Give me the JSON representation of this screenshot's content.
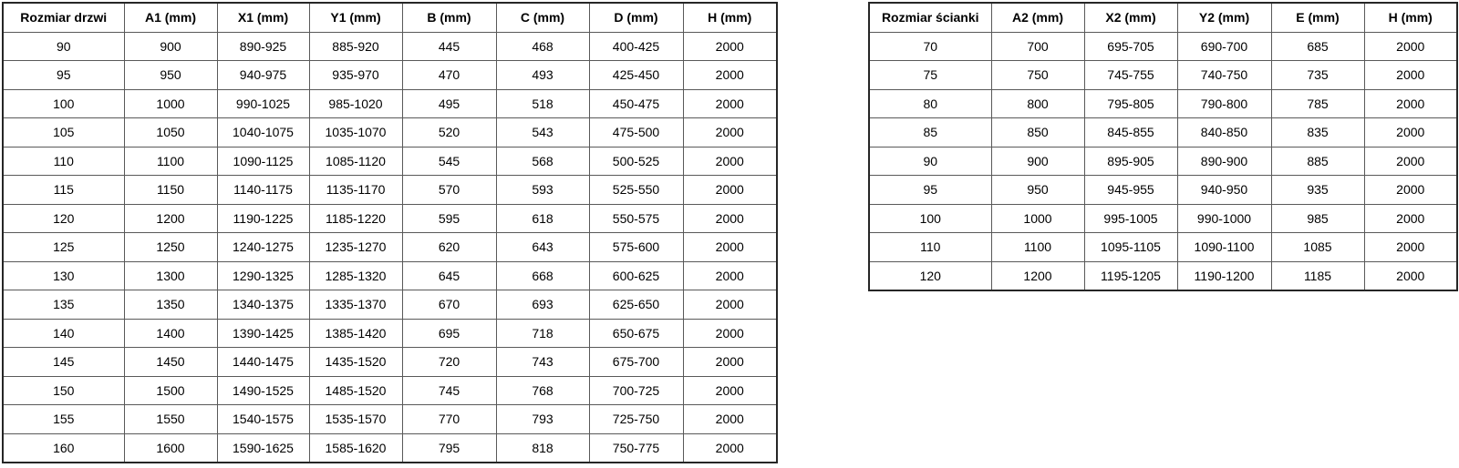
{
  "colors": {
    "background": "#ffffff",
    "border_outer": "#262626",
    "border_inner": "#595959",
    "text": "#000000"
  },
  "tables": [
    {
      "name": "door-size-table",
      "headers": [
        "Rozmiar drzwi",
        "A1 (mm)",
        "X1 (mm)",
        "Y1 (mm)",
        "B (mm)",
        "C (mm)",
        "D (mm)",
        "H (mm)"
      ],
      "rows": [
        [
          "90",
          "900",
          "890-925",
          "885-920",
          "445",
          "468",
          "400-425",
          "2000"
        ],
        [
          "95",
          "950",
          "940-975",
          "935-970",
          "470",
          "493",
          "425-450",
          "2000"
        ],
        [
          "100",
          "1000",
          "990-1025",
          "985-1020",
          "495",
          "518",
          "450-475",
          "2000"
        ],
        [
          "105",
          "1050",
          "1040-1075",
          "1035-1070",
          "520",
          "543",
          "475-500",
          "2000"
        ],
        [
          "110",
          "1100",
          "1090-1125",
          "1085-1120",
          "545",
          "568",
          "500-525",
          "2000"
        ],
        [
          "115",
          "1150",
          "1140-1175",
          "1135-1170",
          "570",
          "593",
          "525-550",
          "2000"
        ],
        [
          "120",
          "1200",
          "1190-1225",
          "1185-1220",
          "595",
          "618",
          "550-575",
          "2000"
        ],
        [
          "125",
          "1250",
          "1240-1275",
          "1235-1270",
          "620",
          "643",
          "575-600",
          "2000"
        ],
        [
          "130",
          "1300",
          "1290-1325",
          "1285-1320",
          "645",
          "668",
          "600-625",
          "2000"
        ],
        [
          "135",
          "1350",
          "1340-1375",
          "1335-1370",
          "670",
          "693",
          "625-650",
          "2000"
        ],
        [
          "140",
          "1400",
          "1390-1425",
          "1385-1420",
          "695",
          "718",
          "650-675",
          "2000"
        ],
        [
          "145",
          "1450",
          "1440-1475",
          "1435-1520",
          "720",
          "743",
          "675-700",
          "2000"
        ],
        [
          "150",
          "1500",
          "1490-1525",
          "1485-1520",
          "745",
          "768",
          "700-725",
          "2000"
        ],
        [
          "155",
          "1550",
          "1540-1575",
          "1535-1570",
          "770",
          "793",
          "725-750",
          "2000"
        ],
        [
          "160",
          "1600",
          "1590-1625",
          "1585-1620",
          "795",
          "818",
          "750-775",
          "2000"
        ]
      ]
    },
    {
      "name": "wall-size-table",
      "headers": [
        "Rozmiar ścianki",
        "A2 (mm)",
        "X2 (mm)",
        "Y2 (mm)",
        "E (mm)",
        "H (mm)"
      ],
      "rows": [
        [
          "70",
          "700",
          "695-705",
          "690-700",
          "685",
          "2000"
        ],
        [
          "75",
          "750",
          "745-755",
          "740-750",
          "735",
          "2000"
        ],
        [
          "80",
          "800",
          "795-805",
          "790-800",
          "785",
          "2000"
        ],
        [
          "85",
          "850",
          "845-855",
          "840-850",
          "835",
          "2000"
        ],
        [
          "90",
          "900",
          "895-905",
          "890-900",
          "885",
          "2000"
        ],
        [
          "95",
          "950",
          "945-955",
          "940-950",
          "935",
          "2000"
        ],
        [
          "100",
          "1000",
          "995-1005",
          "990-1000",
          "985",
          "2000"
        ],
        [
          "110",
          "1100",
          "1095-1105",
          "1090-1100",
          "1085",
          "2000"
        ],
        [
          "120",
          "1200",
          "1195-1205",
          "1190-1200",
          "1185",
          "2000"
        ]
      ]
    }
  ]
}
